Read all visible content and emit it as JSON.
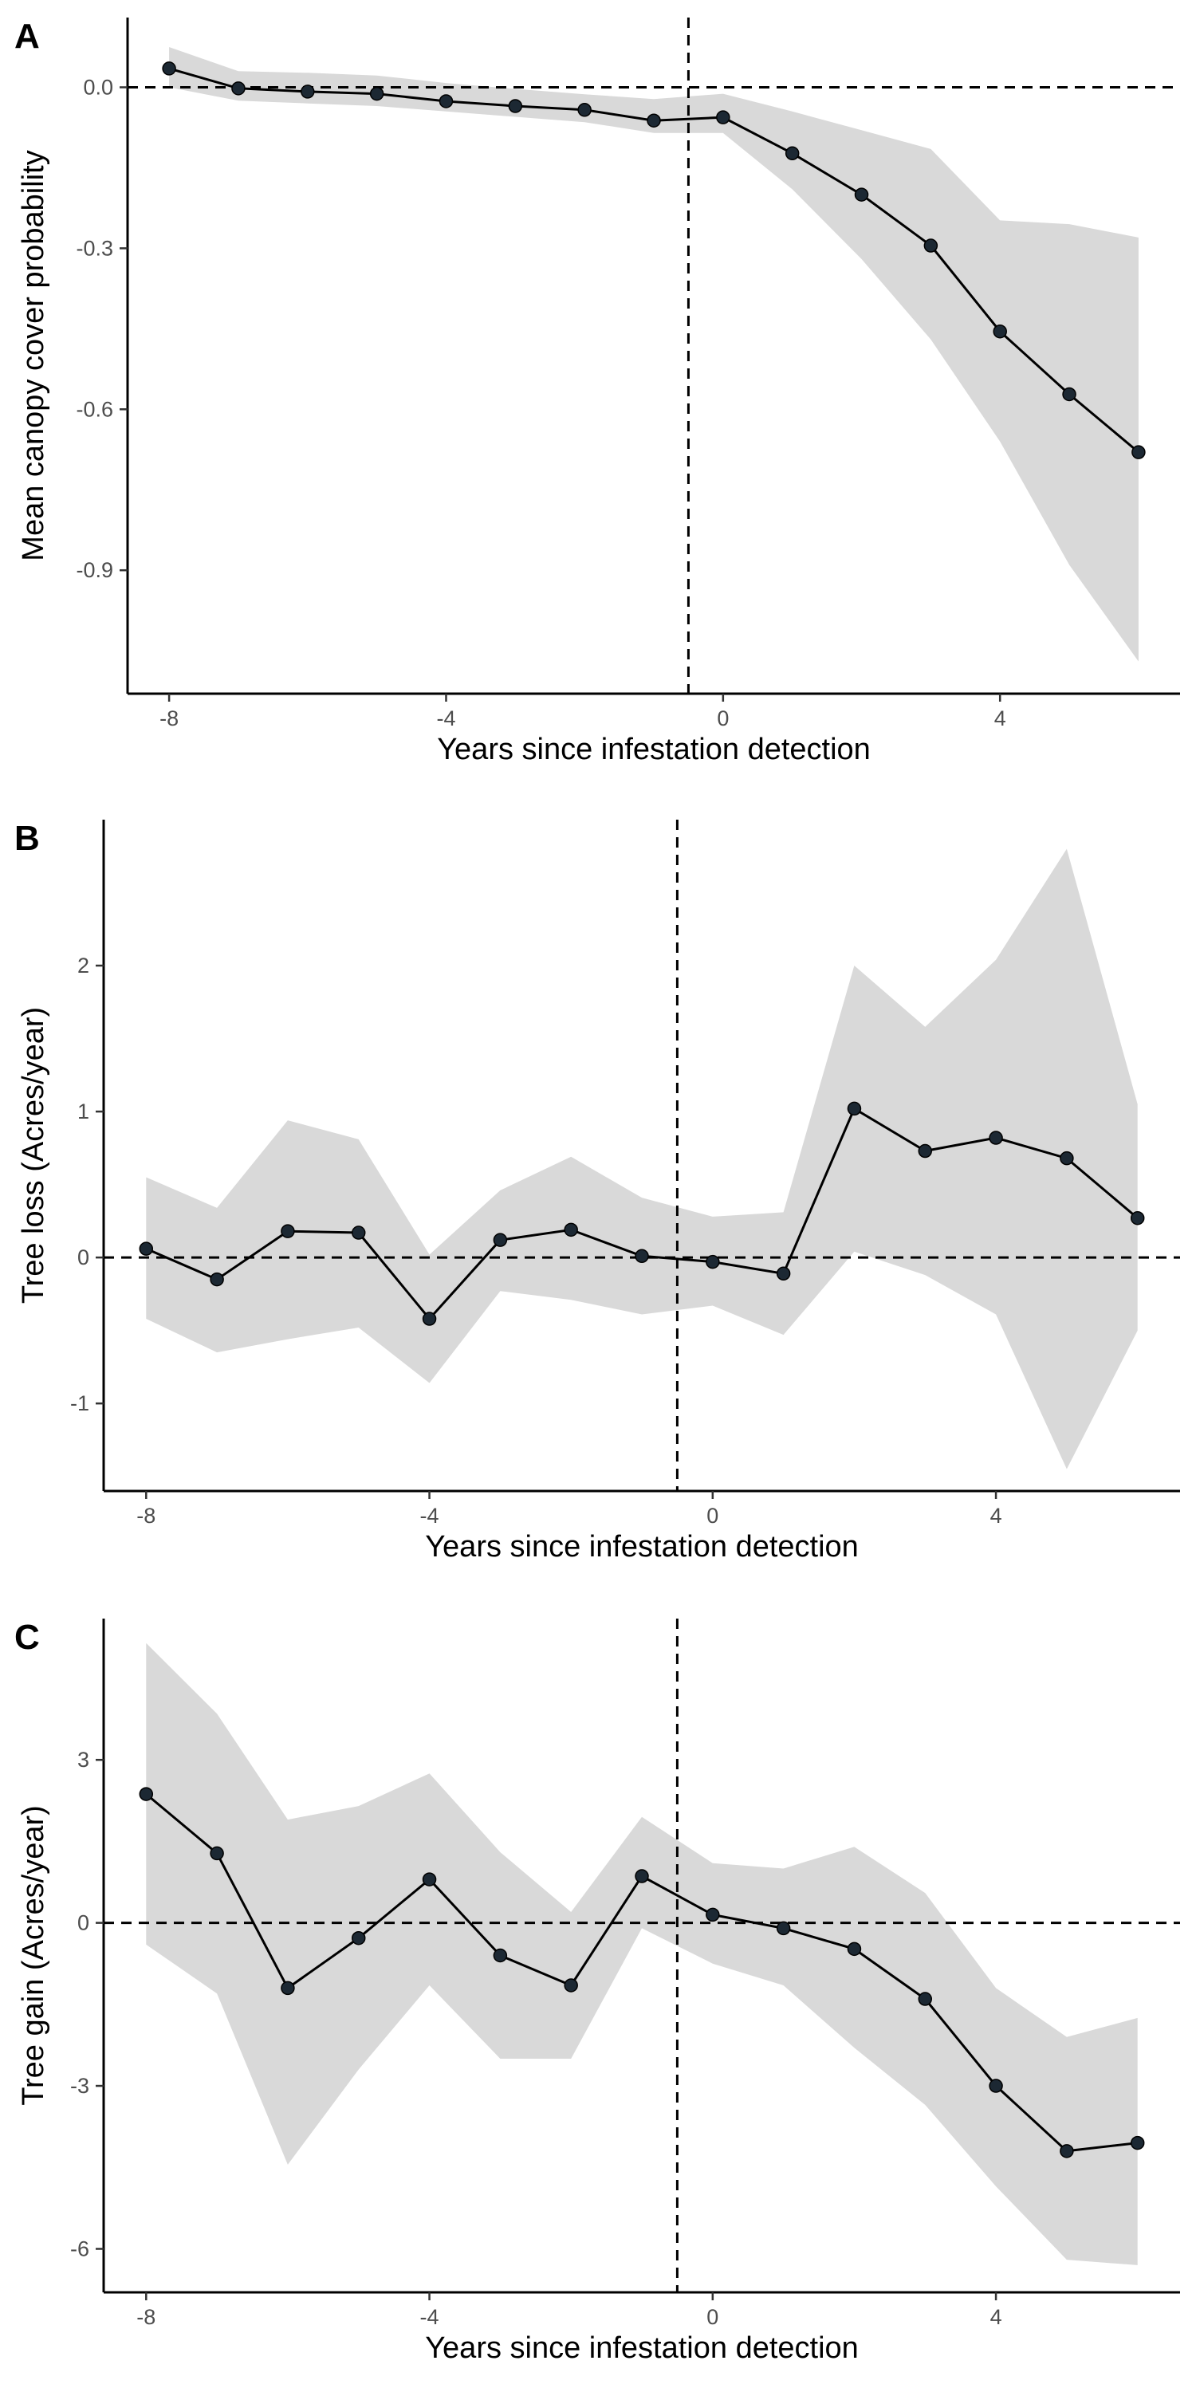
{
  "chart_data": [
    {
      "type": "line",
      "panel_label": "A",
      "xlabel": "Years since infestation detection",
      "ylabel": "Mean canopy cover probability",
      "xlim": [
        -8.6,
        6.6
      ],
      "ylim": [
        -1.13,
        0.13
      ],
      "xticks": [
        -8,
        -4,
        0,
        4
      ],
      "xtick_labels": [
        "-8",
        "-4",
        "0",
        "4"
      ],
      "yticks": [
        0.0,
        -0.3,
        -0.6,
        -0.9
      ],
      "ytick_labels": [
        "0.0",
        "-0.3",
        "-0.6",
        "-0.9"
      ],
      "vline_x": -0.5,
      "hline_y": 0,
      "grid": false,
      "x": [
        -8,
        -7,
        -6,
        -5,
        -4,
        -3,
        -2,
        -1,
        0,
        1,
        2,
        3,
        4,
        5,
        6
      ],
      "y": [
        0.035,
        -0.002,
        -0.008,
        -0.012,
        -0.026,
        -0.035,
        -0.042,
        -0.062,
        -0.056,
        -0.123,
        -0.2,
        -0.295,
        -0.455,
        -0.572,
        -0.68
      ],
      "ci_lower": [
        0.0,
        -0.025,
        -0.03,
        -0.035,
        -0.045,
        -0.055,
        -0.065,
        -0.085,
        -0.085,
        -0.19,
        -0.32,
        -0.47,
        -0.66,
        -0.89,
        -1.07
      ],
      "ci_upper": [
        0.075,
        0.03,
        0.027,
        0.022,
        0.008,
        -0.003,
        -0.013,
        -0.022,
        -0.012,
        -0.045,
        -0.08,
        -0.115,
        -0.248,
        -0.255,
        -0.28
      ]
    },
    {
      "type": "line",
      "panel_label": "B",
      "xlabel": "Years since infestation detection",
      "ylabel": "Tree loss (Acres/year)",
      "xlim": [
        -8.6,
        6.6
      ],
      "ylim": [
        -1.6,
        3.0
      ],
      "xticks": [
        -8,
        -4,
        0,
        4
      ],
      "xtick_labels": [
        "-8",
        "-4",
        "0",
        "4"
      ],
      "yticks": [
        2,
        1,
        0,
        -1
      ],
      "ytick_labels": [
        "2",
        "1",
        "0",
        "-1"
      ],
      "vline_x": -0.5,
      "hline_y": 0,
      "grid": false,
      "x": [
        -8,
        -7,
        -6,
        -5,
        -4,
        -3,
        -2,
        -1,
        0,
        1,
        2,
        3,
        4,
        5,
        6
      ],
      "y": [
        0.06,
        -0.15,
        0.18,
        0.17,
        -0.42,
        0.12,
        0.19,
        0.01,
        -0.03,
        -0.11,
        1.02,
        0.73,
        0.82,
        0.68,
        0.27
      ],
      "ci_lower": [
        -0.42,
        -0.65,
        -0.56,
        -0.48,
        -0.86,
        -0.23,
        -0.29,
        -0.39,
        -0.33,
        -0.53,
        0.04,
        -0.12,
        -0.39,
        -1.45,
        -0.5
      ],
      "ci_upper": [
        0.55,
        0.34,
        0.94,
        0.81,
        0.02,
        0.46,
        0.69,
        0.41,
        0.28,
        0.31,
        2.0,
        1.58,
        2.04,
        2.8,
        1.05
      ]
    },
    {
      "type": "line",
      "panel_label": "C",
      "xlabel": "Years since infestation detection",
      "ylabel": "Tree gain (Acres/year)",
      "xlim": [
        -8.6,
        6.6
      ],
      "ylim": [
        -6.8,
        5.6
      ],
      "xticks": [
        -8,
        -4,
        0,
        4
      ],
      "xtick_labels": [
        "-8",
        "-4",
        "0",
        "4"
      ],
      "yticks": [
        3,
        0,
        -3,
        -6
      ],
      "ytick_labels": [
        "3",
        "0",
        "-3",
        "-6"
      ],
      "vline_x": -0.5,
      "hline_y": 0,
      "grid": false,
      "x": [
        -8,
        -7,
        -6,
        -5,
        -4,
        -3,
        -2,
        -1,
        0,
        1,
        2,
        3,
        4,
        5,
        6
      ],
      "y": [
        2.37,
        1.28,
        -1.2,
        -0.28,
        0.8,
        -0.6,
        -1.15,
        0.86,
        0.15,
        -0.1,
        -0.48,
        -1.4,
        -3.0,
        -4.2,
        -4.05
      ],
      "ci_lower": [
        -0.4,
        -1.3,
        -4.45,
        -2.7,
        -1.15,
        -2.5,
        -2.5,
        -0.1,
        -0.75,
        -1.15,
        -2.3,
        -3.35,
        -4.85,
        -6.2,
        -6.3
      ],
      "ci_upper": [
        5.15,
        3.85,
        1.9,
        2.15,
        2.75,
        1.3,
        0.2,
        1.95,
        1.1,
        1.0,
        1.4,
        0.55,
        -1.2,
        -2.1,
        -1.75
      ]
    }
  ]
}
